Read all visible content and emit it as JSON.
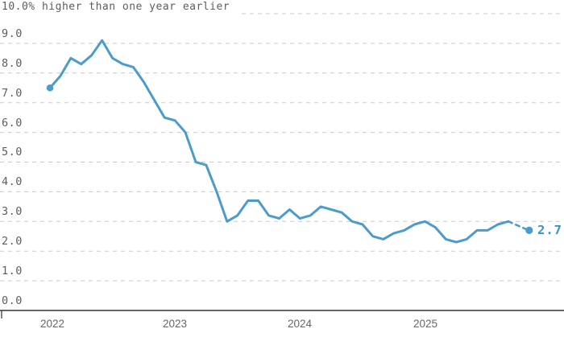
{
  "colors": {
    "accent": "#4a9ccd",
    "accent_label": "#3a93c8",
    "grid": "#c9c9c9",
    "axis": "#333333",
    "text": "#5d5d5d"
  },
  "chart_data": {
    "type": "line",
    "annotation": "10.0% higher than one year earlier",
    "x_unit": "month",
    "x_start": "2022-01",
    "x_solid_end": "2025-09",
    "values": [
      7.5,
      7.9,
      8.5,
      8.3,
      8.6,
      9.1,
      8.5,
      8.3,
      8.2,
      7.7,
      7.1,
      6.5,
      6.4,
      6.0,
      5.0,
      4.9,
      4.0,
      3.0,
      3.2,
      3.7,
      3.7,
      3.2,
      3.1,
      3.4,
      3.1,
      3.2,
      3.5,
      3.4,
      3.3,
      3.0,
      2.9,
      2.5,
      2.4,
      2.6,
      2.7,
      2.9,
      3.0,
      2.8,
      2.4,
      2.3,
      2.4,
      2.7,
      2.7,
      2.9,
      3.0
    ],
    "final_point": {
      "x": "2025-11",
      "month_index": 46,
      "value": 2.7,
      "label": "2.7",
      "connector": "dashed"
    },
    "start_marker": true,
    "ylim": [
      0,
      10
    ],
    "yticks": [
      0,
      1,
      2,
      3,
      4,
      5,
      6,
      7,
      8,
      9,
      10
    ],
    "ytick_labels": [
      "0.0",
      "1.0",
      "2.0",
      "3.0",
      "4.0",
      "5.0",
      "6.0",
      "7.0",
      "8.0",
      "9.0"
    ],
    "ytick_top_label_in_annotation": "10.0%",
    "xtick_labels": [
      "2022",
      "2023",
      "2024",
      "2025"
    ],
    "grid": "horizontal dashed",
    "legend": "none"
  }
}
